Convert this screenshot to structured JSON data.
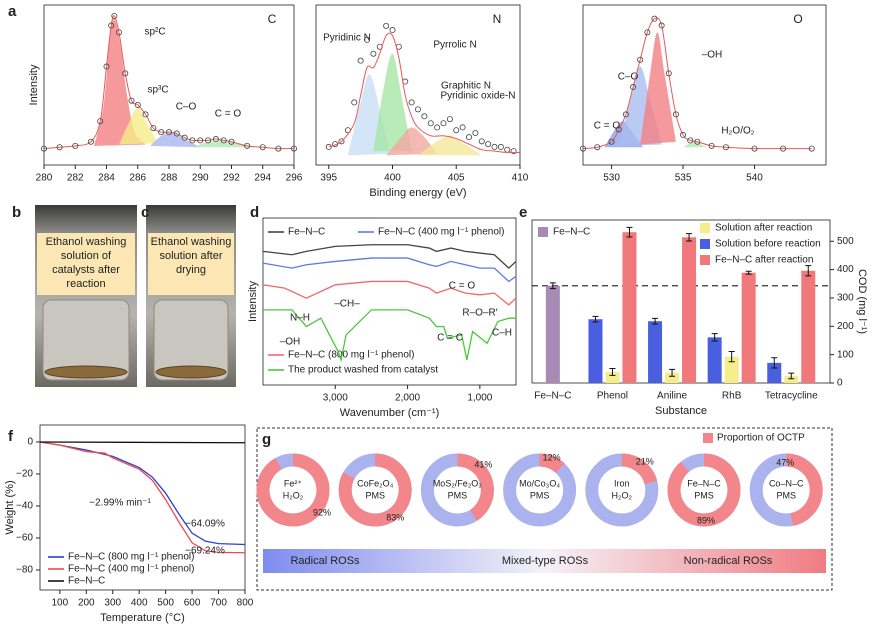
{
  "chart_data": [
    {
      "type": "xps",
      "panel": "a",
      "title": "C",
      "ylabel": "Intensity",
      "xlim": [
        280,
        296
      ],
      "xticks": [
        280,
        282,
        284,
        286,
        288,
        290,
        292,
        294,
        296
      ],
      "ylim": [
        -12,
        105
      ],
      "fit": {
        "color": "#e8595a",
        "markers": true,
        "x": [
          280,
          281,
          282,
          283,
          283.6,
          284,
          284.3,
          284.5,
          284.8,
          285.2,
          285.6,
          286,
          286.5,
          287,
          287.5,
          288,
          288.5,
          289,
          289.5,
          290,
          290.5,
          291,
          291.5,
          292,
          293,
          294,
          295,
          296
        ],
        "values": [
          0,
          1,
          2,
          5,
          20,
          60,
          90,
          97,
          85,
          55,
          35,
          32,
          25,
          15,
          12,
          12,
          11,
          8,
          6,
          6,
          6,
          7,
          6,
          5,
          2,
          1,
          0,
          0
        ]
      },
      "components": [
        {
          "name": "sp²C",
          "color": "#f47f83",
          "x": [
            283.2,
            283.8,
            284.2,
            284.5,
            284.9,
            285.3,
            285.8,
            286.5
          ],
          "values": [
            2,
            30,
            80,
            95,
            75,
            40,
            12,
            3
          ]
        },
        {
          "name": "sp³C",
          "color": "#f5ec8a",
          "x": [
            284.8,
            285.4,
            286,
            286.6,
            287.3
          ],
          "values": [
            3,
            18,
            30,
            18,
            4
          ]
        },
        {
          "name": "C–O",
          "color": "#a9b7f0",
          "x": [
            286.8,
            287.6,
            288.3,
            289,
            290
          ],
          "values": [
            2,
            10,
            12,
            7,
            1
          ]
        },
        {
          "name": "C = O",
          "color": "#b4eab4",
          "x": [
            289.5,
            290.5,
            291.3,
            292.2,
            293.5
          ],
          "values": [
            1,
            5,
            6,
            4,
            1
          ]
        }
      ]
    },
    {
      "type": "xps",
      "title": "N",
      "xlabel": "Binding energy (eV)",
      "xlim": [
        394,
        410
      ],
      "xticks": [
        395,
        400,
        405,
        410
      ],
      "ylim": [
        -5,
        110
      ],
      "measured": {
        "x": [
          395,
          395.5,
          396,
          396.5,
          397,
          397.5,
          398,
          398.5,
          399,
          399.5,
          400,
          400.5,
          401,
          401.5,
          402,
          402.5,
          403,
          403.5,
          404,
          404.5,
          405,
          405.5,
          406,
          406.5,
          407,
          407.5,
          408,
          408.5,
          409,
          409.5
        ],
        "values": [
          8,
          10,
          12,
          20,
          40,
          70,
          85,
          75,
          80,
          95,
          92,
          80,
          55,
          40,
          35,
          30,
          25,
          22,
          25,
          28,
          20,
          22,
          15,
          18,
          12,
          10,
          8,
          8,
          6,
          5
        ]
      },
      "fit": {
        "color": "#e8595a",
        "markers": false,
        "x": [
          395,
          396,
          397,
          397.5,
          398,
          398.5,
          399,
          399.5,
          400,
          400.5,
          401,
          401.5,
          402,
          403,
          404,
          405,
          406,
          407,
          408,
          409,
          410
        ],
        "values": [
          8,
          12,
          25,
          45,
          65,
          65,
          75,
          88,
          88,
          72,
          45,
          30,
          22,
          16,
          16,
          14,
          10,
          6,
          5,
          4,
          4
        ]
      },
      "components": [
        {
          "name": "Pyridinic N",
          "color": "#c8dff5",
          "x": [
            396.5,
            397.5,
            398.2,
            399,
            399.8
          ],
          "values": [
            2,
            40,
            60,
            35,
            3
          ]
        },
        {
          "name": "Pyrrolic N",
          "color": "#a6e6a6",
          "x": [
            398.5,
            399.3,
            400,
            400.7,
            401.5
          ],
          "values": [
            5,
            50,
            75,
            45,
            5
          ]
        },
        {
          "name": "Graphitic N",
          "color": "#f0a8a0",
          "x": [
            399.5,
            400.7,
            401.5,
            402.5,
            403.5
          ],
          "values": [
            2,
            15,
            22,
            15,
            3
          ]
        },
        {
          "name": "Pyridinic oxide-N",
          "color": "#f3e79a",
          "x": [
            402,
            403.5,
            404.5,
            405.5,
            407
          ],
          "values": [
            2,
            12,
            16,
            11,
            2
          ]
        }
      ]
    },
    {
      "type": "xps",
      "title": "O",
      "xlim": [
        528,
        545
      ],
      "xticks": [
        530,
        535,
        540
      ],
      "ylim": [
        -12,
        105
      ],
      "fit": {
        "color": "#e8595a",
        "markers": true,
        "x": [
          528,
          529,
          530,
          530.5,
          531,
          531.5,
          532,
          532.5,
          533,
          533.5,
          534,
          534.5,
          535,
          535.5,
          536,
          537,
          538,
          540,
          542,
          544
        ],
        "values": [
          0,
          1,
          5,
          14,
          25,
          45,
          65,
          85,
          95,
          90,
          55,
          25,
          10,
          6,
          5,
          2,
          1,
          0,
          0,
          0
        ]
      },
      "components": [
        {
          "name": "C = O",
          "color": "#8ea4ea",
          "x": [
            529.5,
            530.3,
            530.8,
            531.3,
            532.2
          ],
          "values": [
            1,
            15,
            20,
            14,
            1
          ]
        },
        {
          "name": "C–O",
          "color": "#a9bdf0",
          "x": [
            530.5,
            531.3,
            532,
            532.7,
            533.5
          ],
          "values": [
            2,
            35,
            60,
            35,
            3
          ]
        },
        {
          "name": "–OH",
          "color": "#f47f83",
          "x": [
            532,
            532.7,
            533.2,
            533.7,
            534.5
          ],
          "values": [
            3,
            55,
            85,
            55,
            5
          ]
        },
        {
          "name": "H₂O/O₂",
          "color": "#b4eab4",
          "x": [
            535,
            535.8,
            536.6
          ],
          "values": [
            1,
            5,
            1
          ]
        }
      ]
    },
    {
      "type": "line",
      "panel": "d",
      "xlabel": "Wavenumber (cm⁻¹)",
      "ylabel": "Intensity",
      "xlim": [
        4000,
        500
      ],
      "ylim": [
        0,
        100
      ],
      "xticks": [
        {
          "value": 3000,
          "label": "3,000"
        },
        {
          "value": 2000,
          "label": "2,000"
        },
        {
          "value": 1000,
          "label": "1,000"
        }
      ],
      "series": [
        {
          "name": "Fe–N–C",
          "color": "#444444",
          "x": [
            4000,
            3600,
            3400,
            3000,
            2500,
            2000,
            1700,
            1600,
            1400,
            1200,
            1000,
            800,
            600,
            500
          ],
          "values": [
            80,
            78,
            80,
            83,
            84,
            84,
            82,
            80,
            82,
            80,
            79,
            78,
            70,
            74
          ]
        },
        {
          "name": "Fe–N–C (400 mg l⁻¹ phenol)",
          "color": "#5b7be6",
          "x": [
            4000,
            3600,
            3400,
            3000,
            2500,
            2000,
            1700,
            1600,
            1400,
            1200,
            1000,
            800,
            600,
            500
          ],
          "values": [
            73,
            70,
            72,
            74,
            76,
            76,
            72,
            71,
            74,
            72,
            70,
            70,
            62,
            65
          ]
        },
        {
          "name": "Fe–N–C (800 mg l⁻¹ phenol)",
          "color": "#f0686c",
          "x": [
            4000,
            3700,
            3400,
            3100,
            3000,
            2500,
            2000,
            1700,
            1600,
            1400,
            1200,
            1000,
            800,
            600,
            500
          ],
          "values": [
            60,
            58,
            52,
            58,
            60,
            62,
            62,
            58,
            55,
            58,
            55,
            54,
            55,
            48,
            52
          ]
        },
        {
          "name": "The product washed from catalyst",
          "color": "#4cc83c",
          "x": [
            4000,
            3600,
            3400,
            3200,
            2960,
            2920,
            2850,
            2500,
            2000,
            1700,
            1600,
            1500,
            1450,
            1250,
            1180,
            1100,
            900,
            750,
            600,
            500
          ],
          "values": [
            45,
            45,
            35,
            40,
            20,
            15,
            30,
            45,
            45,
            40,
            35,
            35,
            28,
            30,
            15,
            32,
            25,
            38,
            40,
            40
          ]
        }
      ],
      "annotations": [
        "C = O",
        "R–O–R′",
        "C–H",
        "–CH–",
        "N–H",
        "–OH",
        "C = C"
      ]
    },
    {
      "type": "bar",
      "panel": "e",
      "xlabel": "Substance",
      "ylabel": "COD (mg l⁻¹)",
      "yaxis": "right",
      "categories": [
        "Fe–N–C",
        "Phenol",
        "Aniline",
        "RhB",
        "Tetracycline"
      ],
      "ylim": [
        0,
        575
      ],
      "yticks": [
        0,
        100,
        200,
        300,
        400,
        500
      ],
      "reference_line": 343,
      "series": [
        {
          "name": "Fe–N–C",
          "color": "#a78bb5",
          "values": [
            343,
            null,
            null,
            null,
            null
          ],
          "errors": [
            10,
            null,
            null,
            null,
            null
          ]
        },
        {
          "name": "Solution after reaction",
          "color": "#f5ec8a",
          "values": [
            null,
            39,
            36,
            93,
            25
          ],
          "errors": [
            null,
            12,
            12,
            18,
            10
          ]
        },
        {
          "name": "Solution before reaction",
          "color": "#4a5fe0",
          "values": [
            null,
            225,
            218,
            161,
            71
          ],
          "errors": [
            null,
            10,
            10,
            13,
            18
          ]
        },
        {
          "name": "Fe–N–C after reaction",
          "color": "#f0787a",
          "values": [
            null,
            532,
            514,
            389,
            396
          ],
          "errors": [
            null,
            17,
            13,
            5,
            18
          ]
        }
      ]
    },
    {
      "type": "line",
      "panel": "f",
      "xlabel": "Temperature (°C)",
      "ylabel": "Weight (%)",
      "xlim": [
        25,
        800
      ],
      "ylim": [
        -92.5,
        10.6
      ],
      "xticks": [
        100,
        200,
        300,
        400,
        500,
        600,
        700,
        800
      ],
      "yticks": [
        0,
        {
          "value": -20,
          "label": "−20"
        },
        {
          "value": -40,
          "label": "−40"
        },
        {
          "value": -60,
          "label": "−60"
        },
        {
          "value": -80,
          "label": "−80"
        }
      ],
      "series": [
        {
          "name": "Fe–N–C (800 mg l⁻¹ phenol)",
          "color": "#2b3fd6",
          "x": [
            25,
            100,
            200,
            300,
            400,
            450,
            500,
            550,
            600,
            650,
            700,
            800
          ],
          "values": [
            0,
            -2,
            -5,
            -9,
            -16,
            -22,
            -32,
            -45,
            -57,
            -62,
            -63.5,
            -64.09
          ]
        },
        {
          "name": "Fe–N–C (400 mg l⁻¹ phenol)",
          "color": "#ee4a50",
          "x": [
            25,
            100,
            200,
            270,
            300,
            400,
            450,
            500,
            550,
            600,
            650,
            700,
            800
          ],
          "values": [
            0,
            -2,
            -6,
            -7,
            -10,
            -17,
            -24,
            -36,
            -50,
            -63,
            -68,
            -69,
            -69.24
          ]
        },
        {
          "name": "Fe–N–C",
          "color": "#111111",
          "x": [
            25,
            800
          ],
          "values": [
            0,
            -0.5
          ]
        }
      ],
      "annotations": [
        "−2.99% min⁻¹",
        "−64.09%",
        "−69.24%"
      ]
    },
    {
      "type": "donut",
      "panel": "g",
      "legend": "Proportion of OCTP",
      "color": "#f3868b",
      "track_color": "#aab3ee",
      "values": [
        92,
        83,
        41,
        12,
        21,
        89,
        47
      ],
      "value_labels": [
        "92%",
        "83%",
        "41%",
        "12%",
        "21%",
        "89%",
        "47%"
      ],
      "labels": [
        [
          "Fe²⁺",
          "H₂O₂"
        ],
        [
          "CoFe₂O₄",
          "PMS"
        ],
        [
          "MoS₂/Fe₂O₃",
          "PMS"
        ],
        [
          "Mo/Co₃O₄",
          "PMS"
        ],
        [
          "Iron",
          "H₂O₂"
        ],
        [
          "Fe–N–C",
          "PMS"
        ],
        [
          "Co–N–C",
          "PMS"
        ]
      ],
      "scale_labels": [
        "Radical ROSs",
        "Mixed-type ROSs",
        "Non-radical ROSs"
      ]
    }
  ],
  "photos": [
    {
      "label": "b",
      "caption": [
        "Ethanol washing",
        "solution of",
        "catalysts after",
        "reaction"
      ]
    },
    {
      "label": "c",
      "caption": [
        "Ethanol washing",
        "solution after",
        "drying"
      ]
    }
  ]
}
